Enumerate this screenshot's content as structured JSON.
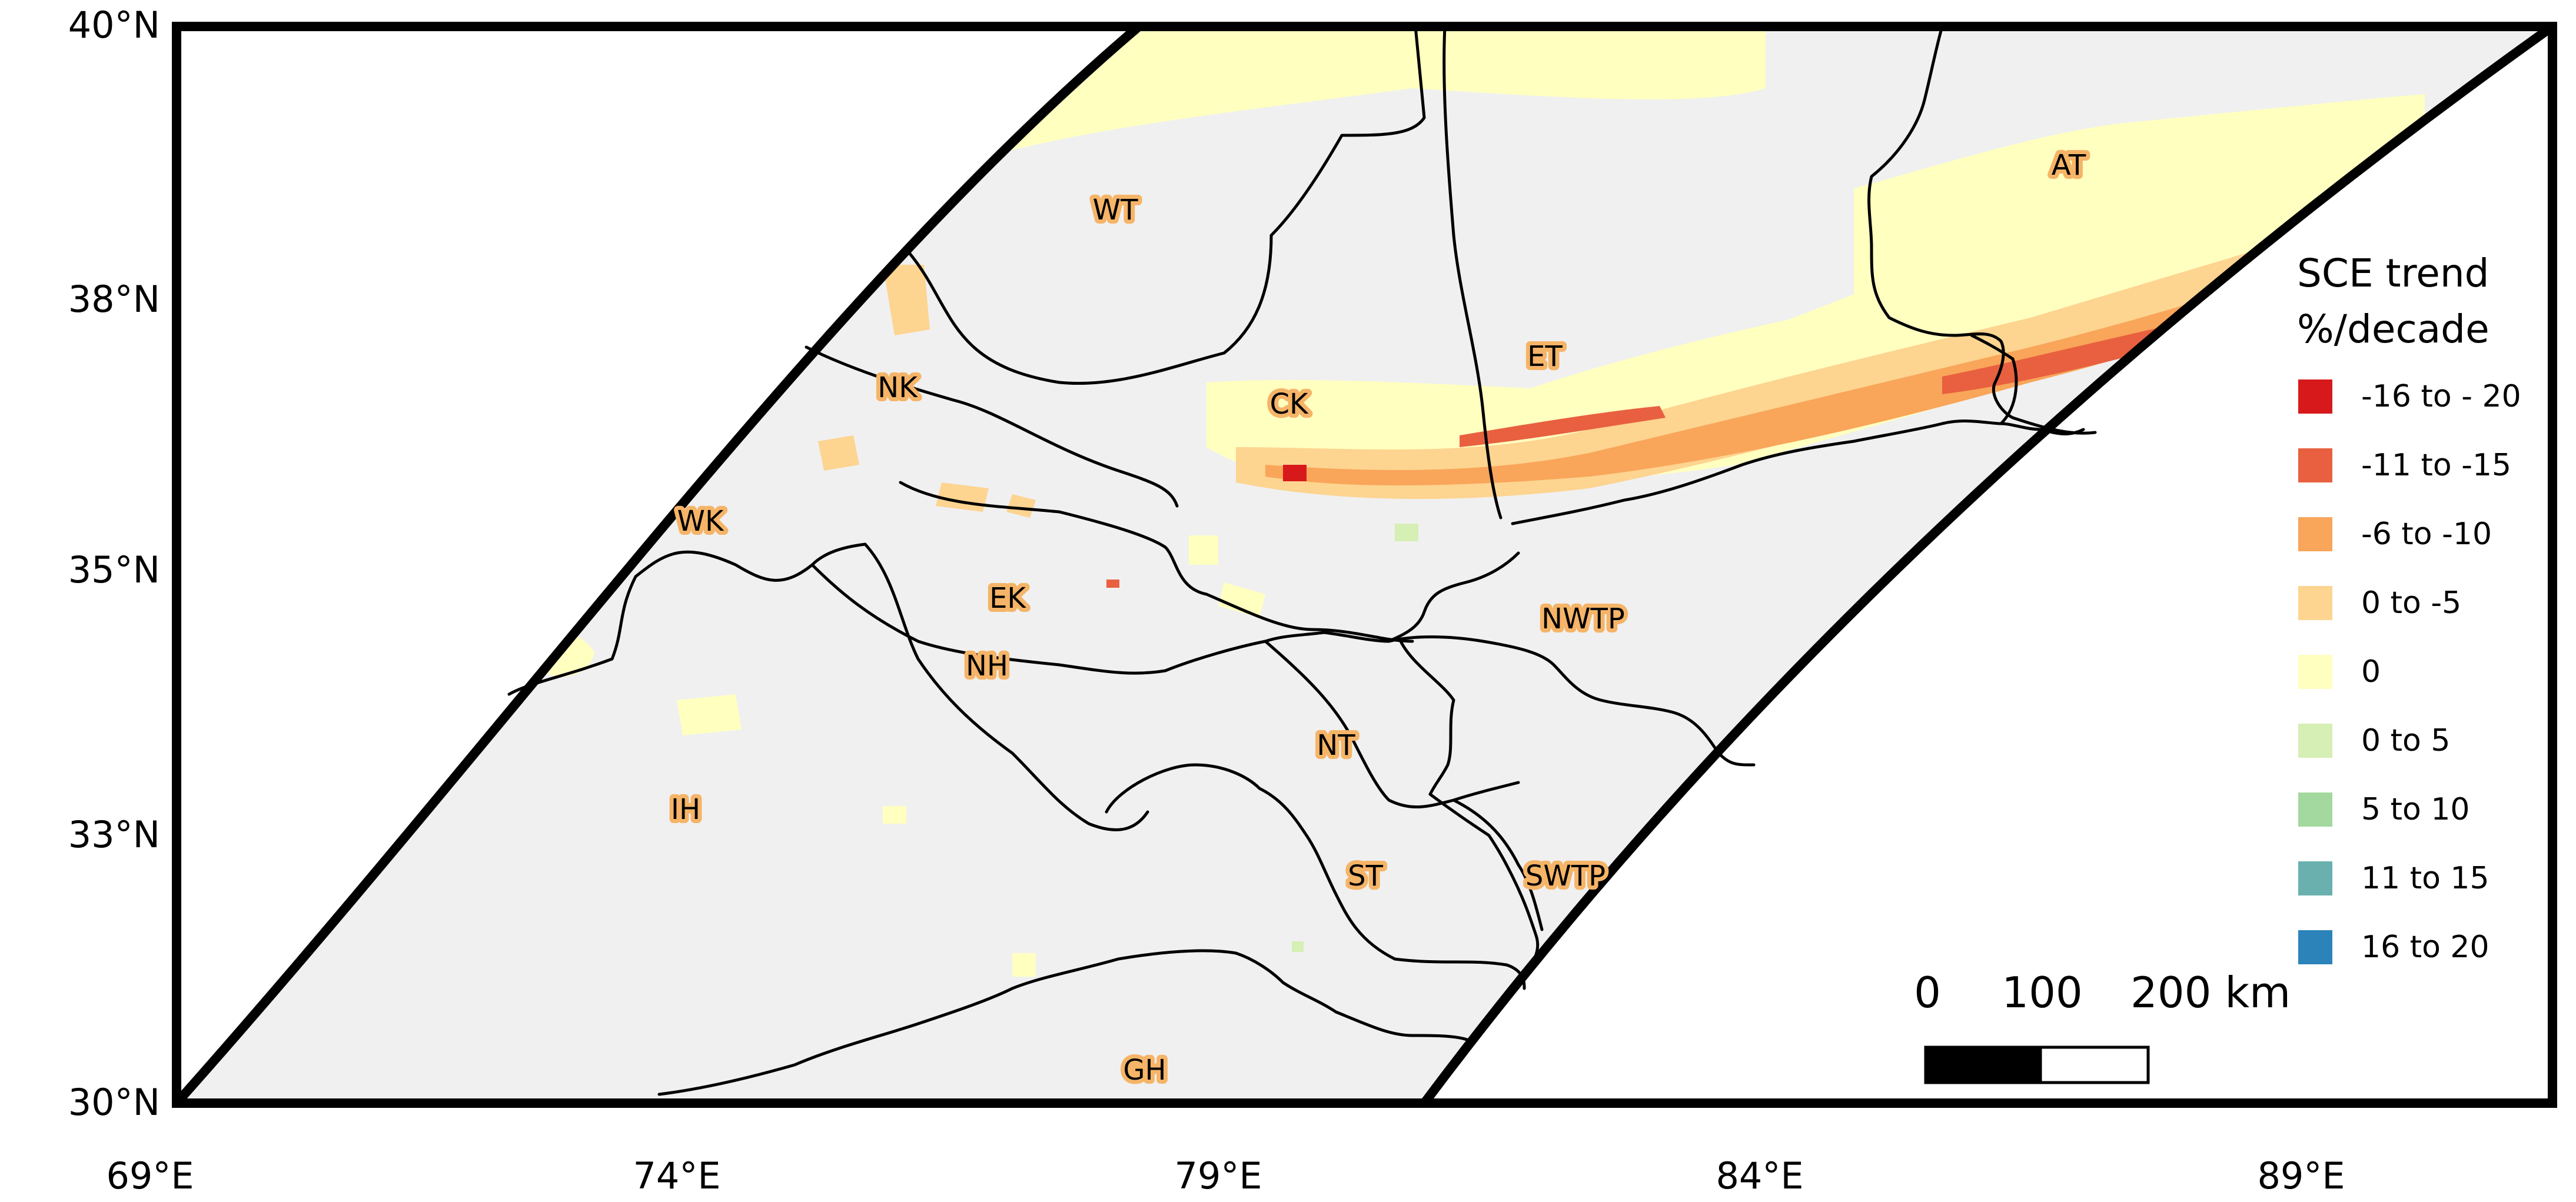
{
  "map": {
    "lat_ticks": [
      "40°N",
      "38°N",
      "35°N",
      "33°N",
      "30°N"
    ],
    "lon_ticks": [
      "69°E",
      "74°E",
      "79°E",
      "84°E",
      "89°E"
    ],
    "regions": [
      "WT",
      "AT",
      "ET",
      "CK",
      "NK",
      "WK",
      "EK",
      "NH",
      "NWTP",
      "NT",
      "IH",
      "ST",
      "SWTP",
      "GH"
    ]
  },
  "legend": {
    "title_line1": "SCE trend",
    "title_line2": "%/decade",
    "items": [
      {
        "label": "-16 to - 20",
        "color": "#d7191c"
      },
      {
        "label": "-11 to -15",
        "color": "#e8603f"
      },
      {
        "label": "-6 to -10",
        "color": "#f9a55a"
      },
      {
        "label": "0 to -5",
        "color": "#fdd490"
      },
      {
        "label": "0",
        "color": "#ffffc0"
      },
      {
        "label": "0 to 5",
        "color": "#d5efb4"
      },
      {
        "label": "5 to 10",
        "color": "#a3d99e"
      },
      {
        "label": "11 to 15",
        "color": "#69b0ae"
      },
      {
        "label": "16 to 20",
        "color": "#2b83ba"
      }
    ]
  },
  "scale_bar": {
    "labels": [
      "0",
      "100",
      "200 km"
    ]
  },
  "colors": {
    "background_land": "#f0f0f0",
    "frame": "#000000",
    "label_halo": "#f5b467"
  }
}
